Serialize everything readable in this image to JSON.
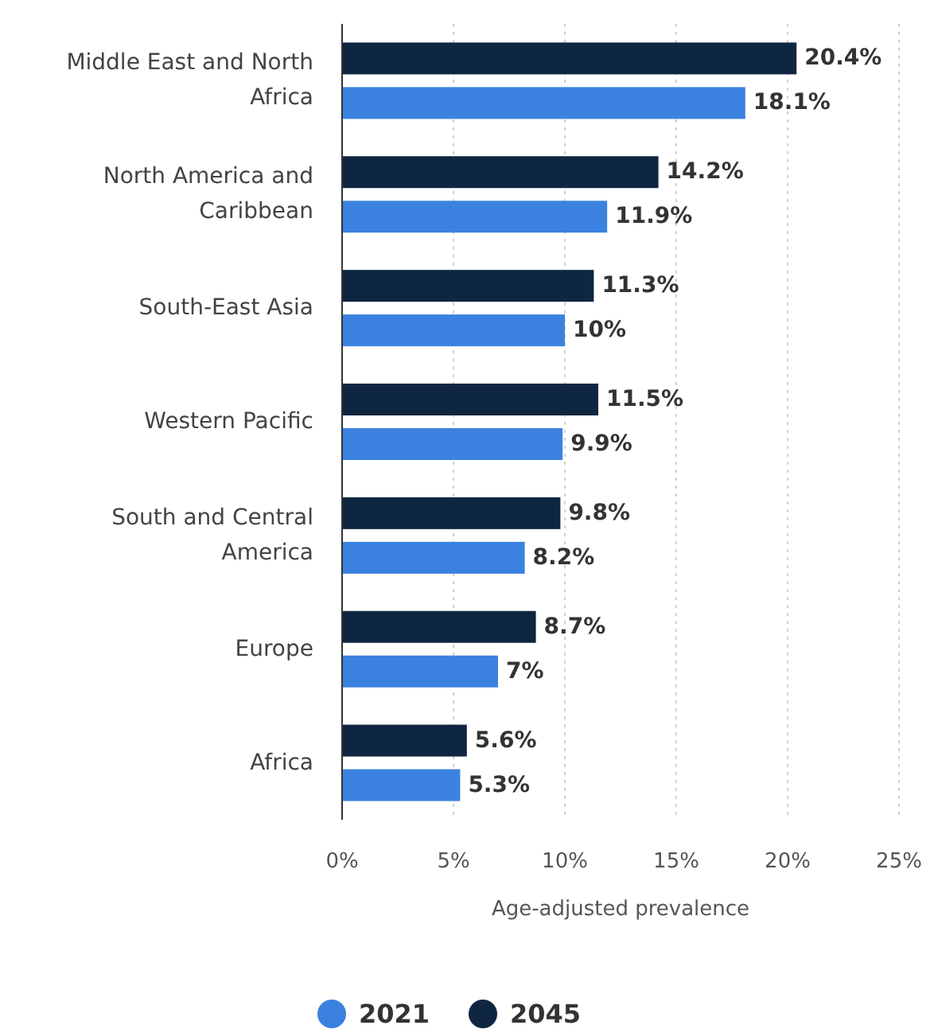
{
  "chart_data": {
    "type": "bar",
    "orientation": "horizontal",
    "xlabel": "Age-adjusted prevalence",
    "categories": [
      "Middle East and North Africa",
      "North America and Caribbean",
      "South-East Asia",
      "Western Pacific",
      "South and Central America",
      "Europe",
      "Africa"
    ],
    "series": [
      {
        "name": "2021",
        "color": "#3b82e0",
        "values": [
          18.1,
          11.9,
          10,
          9.9,
          8.2,
          7,
          5.3
        ],
        "value_labels": [
          "18.1%",
          "11.9%",
          "10%",
          "9.9%",
          "8.2%",
          "7%",
          "5.3%"
        ]
      },
      {
        "name": "2045",
        "color": "#0f2641",
        "values": [
          20.4,
          14.2,
          11.3,
          11.5,
          9.8,
          8.7,
          5.6
        ],
        "value_labels": [
          "20.4%",
          "14.2%",
          "11.3%",
          "11.5%",
          "9.8%",
          "8.7%",
          "5.6%"
        ]
      }
    ],
    "xlim": [
      0,
      25
    ],
    "xticks": [
      {
        "value": 0,
        "label": "0%"
      },
      {
        "value": 5,
        "label": "5%"
      },
      {
        "value": 10,
        "label": "10%"
      },
      {
        "value": 15,
        "label": "15%"
      },
      {
        "value": 20,
        "label": "20%"
      },
      {
        "value": 25,
        "label": "25%"
      }
    ],
    "grid": "x",
    "legend": "bottom"
  }
}
